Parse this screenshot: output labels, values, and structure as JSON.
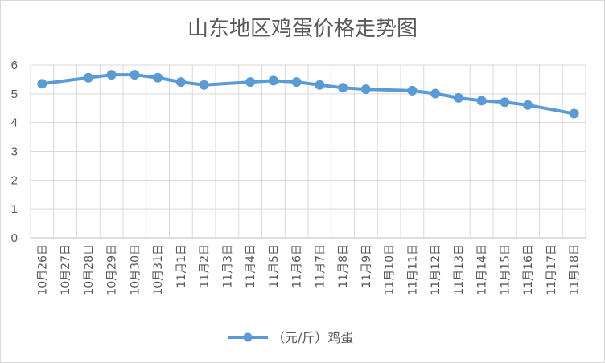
{
  "chart_data": {
    "type": "line",
    "title": "山东地区鸡蛋价格走势图",
    "xlabel": "",
    "ylabel": "",
    "ylim": [
      0,
      6
    ],
    "yticks": [
      0,
      1,
      2,
      3,
      4,
      5,
      6
    ],
    "grid": true,
    "legend_position": "bottom",
    "categories": [
      "10月26日",
      "10月27日",
      "10月28日",
      "10月29日",
      "10月30日",
      "10月31日",
      "11月1日",
      "11月2日",
      "11月3日",
      "11月4日",
      "11月5日",
      "11月6日",
      "11月7日",
      "11月8日",
      "11月9日",
      "11月10日",
      "11月11日",
      "11月12日",
      "11月13日",
      "11月14日",
      "11月15日",
      "11月16日",
      "11月17日",
      "11月18日"
    ],
    "series": [
      {
        "name": "（元/斤）鸡蛋",
        "color": "#5b9bd5",
        "values": [
          5.35,
          null,
          5.56,
          5.66,
          5.66,
          5.56,
          5.41,
          5.31,
          null,
          5.41,
          5.46,
          5.41,
          5.31,
          5.21,
          5.16,
          null,
          5.11,
          5.01,
          4.86,
          4.76,
          4.71,
          4.61,
          null,
          4.31
        ]
      }
    ]
  }
}
